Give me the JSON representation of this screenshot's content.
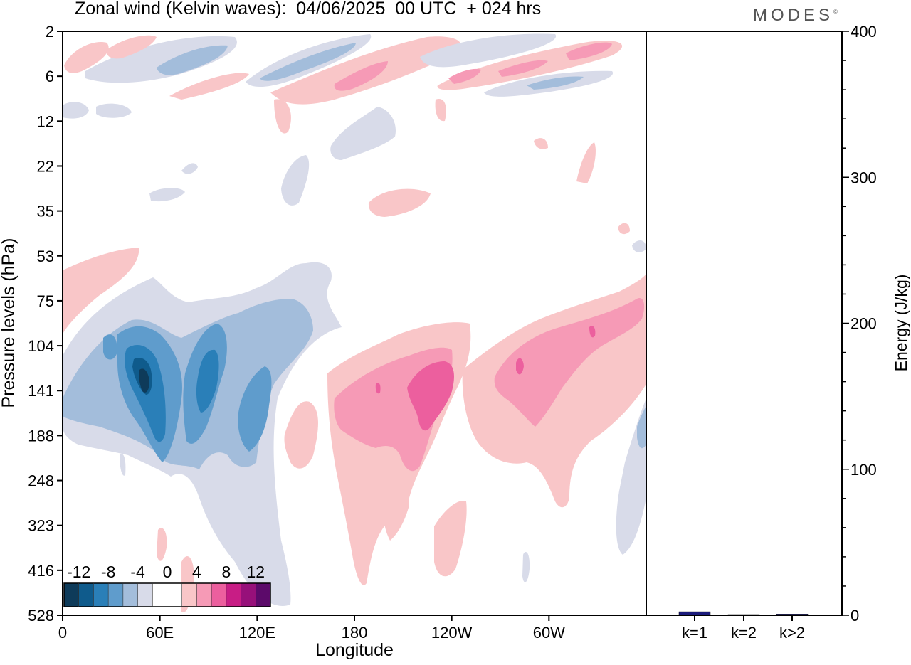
{
  "title": "Zonal wind (Kelvin waves):  04/06/2025  00 UTC  + 024 hrs",
  "logo_text": "MODES",
  "logo_mark": "©",
  "chart_data": [
    {
      "type": "heatmap",
      "title": "Zonal wind (Kelvin waves):  04/06/2025  00 UTC  + 024 hrs",
      "xlabel": "Longitude",
      "ylabel": "Pressure levels (hPa)",
      "x_ticks": [
        "0",
        "60E",
        "120E",
        "180",
        "120W",
        "60W"
      ],
      "x_tick_degrees": [
        0,
        60,
        120,
        180,
        240,
        300
      ],
      "xlim": [
        0,
        360
      ],
      "y_ticks": [
        "2",
        "6",
        "12",
        "22",
        "35",
        "53",
        "75",
        "104",
        "141",
        "188",
        "248",
        "323",
        "416",
        "528"
      ],
      "y_axis": "pressure levels listed top to bottom, evenly spaced",
      "colorbar": {
        "labels": [
          "-12",
          "-8",
          "-4",
          "0",
          "4",
          "8",
          "12"
        ],
        "colors": [
          "#0e3b5a",
          "#0f5b8c",
          "#2a7fb8",
          "#5f9ccc",
          "#a3bddb",
          "#d8dbe9",
          "#ffffff",
          "#ffffff",
          "#f9c6c8",
          "#f69ab6",
          "#ec5f9e",
          "#c81d85",
          "#97107a",
          "#5c0a6a"
        ]
      },
      "features": [
        {
          "kind": "negative",
          "level": -12,
          "lon_range": [
            38,
            50
          ],
          "pressure_range": [
            104,
            188
          ]
        },
        {
          "kind": "negative",
          "level": -8,
          "lon_range": [
            30,
            100
          ],
          "pressure_range": [
            104,
            248
          ]
        },
        {
          "kind": "negative",
          "level": -4,
          "lon_range": [
            0,
            130
          ],
          "pressure_range": [
            75,
            323
          ]
        },
        {
          "kind": "positive",
          "level": 8,
          "lon_range": [
            205,
            240
          ],
          "pressure_range": [
            104,
            188
          ]
        },
        {
          "kind": "positive",
          "level": 4,
          "lon_range": [
            165,
            245
          ],
          "pressure_range": [
            104,
            248
          ]
        },
        {
          "kind": "positive",
          "level": 4,
          "lon_range": [
            265,
            345
          ],
          "pressure_range": [
            75,
            188
          ]
        },
        {
          "kind": "positive",
          "level": 0,
          "lon_range": [
            140,
            360
          ],
          "pressure_range": [
            75,
            416
          ]
        }
      ]
    },
    {
      "type": "bar",
      "categories": [
        "k=1",
        "k=2",
        "k>2"
      ],
      "values": [
        2.4,
        0.4,
        0.8
      ],
      "ylabel": "Energy (J/kg)",
      "ylim": [
        0,
        400
      ],
      "y_ticks": [
        0,
        100,
        200,
        300,
        400
      ],
      "colors": [
        "#1b1b7a",
        "#1b1b7a",
        "#1b1b7a"
      ]
    }
  ]
}
